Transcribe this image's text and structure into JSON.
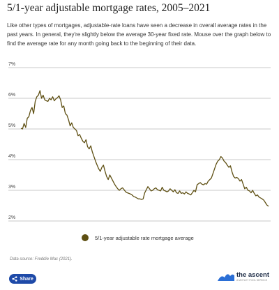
{
  "header": {
    "title": "5/1-year adjustable mortgage rates, 2005–2021",
    "intro": "Like other types of mortgages, adjustable-rate loans have seen a decrease in overall average rates in the past years. In general, they're slightly below the average 30-year fixed rate. Mouse over the graph below to find the average rate for any month going back to the beginning of their data."
  },
  "chart_data": {
    "type": "line",
    "title": "",
    "xlabel": "",
    "ylabel": "",
    "ylim": [
      2,
      7
    ],
    "yticks": [
      "7%",
      "6%",
      "5%",
      "4%",
      "3%",
      "2%"
    ],
    "grid": true,
    "legend_position": "bottom",
    "series": [
      {
        "name": "5/1-year adjustable rate mortgage average",
        "color": "#5e4f12",
        "values": [
          5.02,
          5.0,
          5.18,
          5.05,
          5.35,
          5.4,
          5.6,
          5.7,
          5.5,
          5.9,
          6.05,
          6.1,
          6.25,
          6.0,
          6.1,
          5.95,
          5.92,
          5.9,
          6.0,
          5.95,
          6.05,
          5.92,
          5.98,
          6.02,
          6.08,
          5.95,
          5.7,
          5.75,
          5.5,
          5.45,
          5.3,
          5.1,
          5.2,
          5.05,
          5.0,
          4.95,
          4.78,
          4.82,
          4.7,
          4.6,
          4.55,
          4.65,
          4.42,
          4.35,
          4.45,
          4.25,
          4.1,
          3.95,
          3.82,
          3.7,
          3.62,
          3.75,
          3.82,
          3.62,
          3.45,
          3.35,
          3.5,
          3.4,
          3.3,
          3.2,
          3.12,
          3.05,
          3.0,
          3.05,
          3.08,
          3.02,
          2.95,
          2.92,
          2.9,
          2.88,
          2.85,
          2.8,
          2.78,
          2.75,
          2.72,
          2.72,
          2.7,
          2.72,
          2.92,
          3.02,
          3.12,
          3.05,
          2.98,
          3.0,
          3.05,
          3.08,
          3.02,
          3.0,
          2.98,
          3.1,
          3.0,
          2.98,
          2.95,
          2.98,
          3.05,
          3.0,
          2.95,
          3.02,
          2.92,
          2.9,
          2.98,
          2.9,
          2.92,
          2.88,
          2.95,
          2.9,
          2.88,
          2.85,
          2.92,
          3.0,
          2.95,
          3.18,
          3.22,
          3.25,
          3.2,
          3.18,
          3.22,
          3.2,
          3.3,
          3.35,
          3.4,
          3.55,
          3.7,
          3.85,
          3.95,
          4.0,
          4.1,
          4.05,
          3.95,
          3.9,
          3.82,
          3.75,
          3.8,
          3.6,
          3.45,
          3.4,
          3.42,
          3.38,
          3.3,
          3.35,
          3.2,
          3.05,
          3.1,
          3.0,
          2.98,
          2.92,
          3.0,
          2.9,
          2.82,
          2.85,
          2.78,
          2.75,
          2.72,
          2.68,
          2.6,
          2.52,
          2.48
        ]
      }
    ]
  },
  "legend": {
    "label": "5/1-year adjustable rate mortgage average",
    "color": "#5e4f12"
  },
  "footer": {
    "source": "Data source: Freddie Mac (2021).",
    "share_label": "Share",
    "share_color": "#1e4aa8",
    "brand_name": "the ascent",
    "brand_sub": "A MOTLEY FOOL SERVICE",
    "brand_mark_color": "#2b6fd6"
  }
}
